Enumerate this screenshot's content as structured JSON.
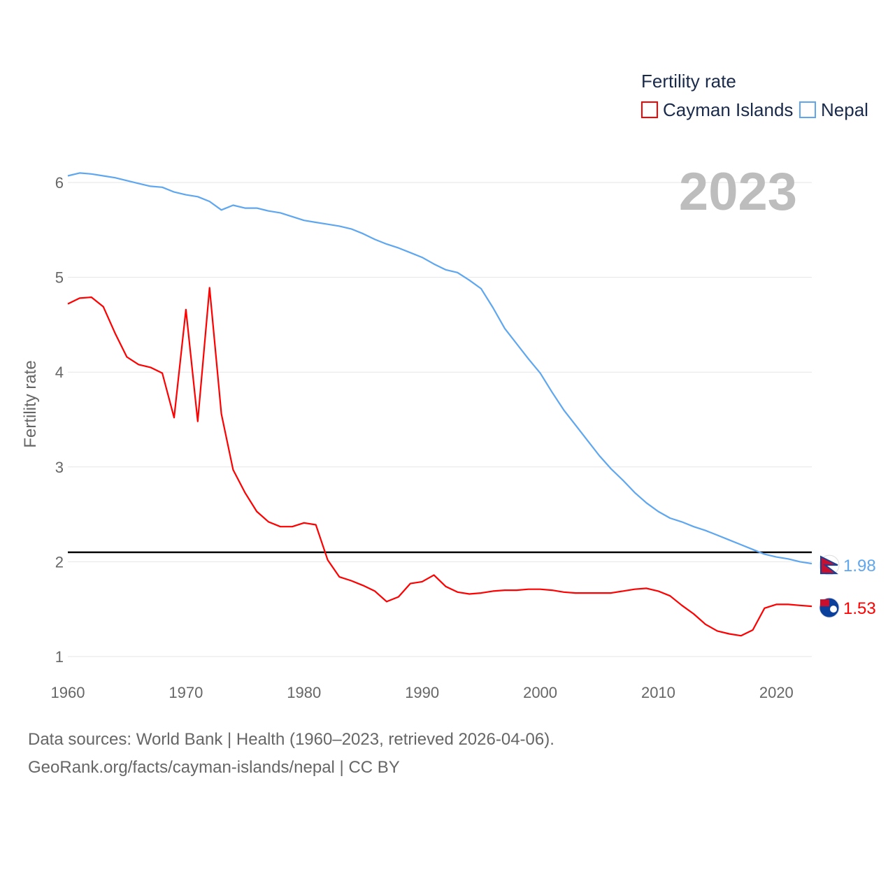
{
  "chart_data": {
    "type": "line",
    "title": "",
    "year_label": "2023",
    "legend_title": "Fertility rate",
    "legend_placement": "top-right",
    "xlabel": "",
    "ylabel": "Fertility rate",
    "xlim": [
      1960,
      2023
    ],
    "ylim": [
      1,
      6
    ],
    "x_ticks": [
      "1960",
      "1970",
      "1980",
      "1990",
      "2000",
      "2010",
      "2020"
    ],
    "y_ticks": [
      "1",
      "2",
      "3",
      "4",
      "5",
      "6"
    ],
    "grid": true,
    "reference_line": 2.1,
    "x": [
      1960,
      1961,
      1962,
      1963,
      1964,
      1965,
      1966,
      1967,
      1968,
      1969,
      1970,
      1971,
      1972,
      1973,
      1974,
      1975,
      1976,
      1977,
      1978,
      1979,
      1980,
      1981,
      1982,
      1983,
      1984,
      1985,
      1986,
      1987,
      1988,
      1989,
      1990,
      1991,
      1992,
      1993,
      1994,
      1995,
      1996,
      1997,
      1998,
      1999,
      2000,
      2001,
      2002,
      2003,
      2004,
      2005,
      2006,
      2007,
      2008,
      2009,
      2010,
      2011,
      2012,
      2013,
      2014,
      2015,
      2016,
      2017,
      2018,
      2019,
      2020,
      2021,
      2022,
      2023
    ],
    "series": [
      {
        "name": "Cayman Islands",
        "color": "#ff0000",
        "end_label": "1.53",
        "values": [
          4.72,
          4.78,
          4.79,
          4.69,
          4.41,
          4.16,
          4.08,
          4.05,
          3.99,
          3.52,
          4.66,
          3.48,
          4.89,
          3.56,
          2.97,
          2.73,
          2.53,
          2.42,
          2.37,
          2.37,
          2.41,
          2.39,
          2.02,
          1.84,
          1.8,
          1.75,
          1.69,
          1.58,
          1.63,
          1.77,
          1.79,
          1.86,
          1.74,
          1.68,
          1.66,
          1.67,
          1.69,
          1.7,
          1.7,
          1.71,
          1.71,
          1.7,
          1.68,
          1.67,
          1.67,
          1.67,
          1.67,
          1.69,
          1.71,
          1.72,
          1.69,
          1.64,
          1.54,
          1.45,
          1.34,
          1.27,
          1.24,
          1.22,
          1.28,
          1.51,
          1.55,
          1.55,
          1.54,
          1.53
        ]
      },
      {
        "name": "Nepal",
        "color": "#5ea7f0",
        "end_label": "1.98",
        "values": [
          6.07,
          6.1,
          6.09,
          6.07,
          6.05,
          6.02,
          5.99,
          5.96,
          5.95,
          5.9,
          5.87,
          5.85,
          5.8,
          5.71,
          5.76,
          5.73,
          5.73,
          5.7,
          5.68,
          5.64,
          5.6,
          5.58,
          5.56,
          5.54,
          5.51,
          5.46,
          5.4,
          5.35,
          5.31,
          5.26,
          5.21,
          5.14,
          5.08,
          5.05,
          4.97,
          4.88,
          4.68,
          4.46,
          4.3,
          4.14,
          3.99,
          3.79,
          3.6,
          3.44,
          3.28,
          3.12,
          2.98,
          2.86,
          2.73,
          2.62,
          2.53,
          2.46,
          2.42,
          2.37,
          2.33,
          2.28,
          2.23,
          2.18,
          2.13,
          2.08,
          2.05,
          2.03,
          2.0,
          1.98
        ]
      }
    ]
  },
  "footer": {
    "line1": "Data sources: World Bank | Health (1960–2023, retrieved 2026-04-06).",
    "line2": "GeoRank.org/facts/cayman-islands/nepal | CC BY"
  }
}
